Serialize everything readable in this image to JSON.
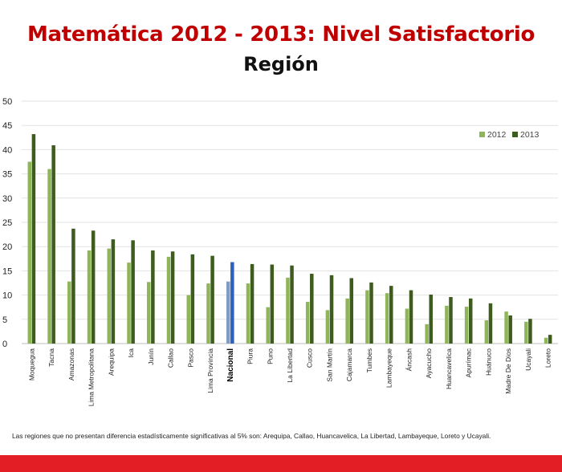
{
  "header": {
    "title": "Matemática 2012 - 2013: Nivel Satisfactorio",
    "subtitle": "Región"
  },
  "footnote": "Las regiones que no presentan diferencia estadísticamente significativas al 5% son: Arequipa, Callao, Huancavelica, La Libertad, Lambayeque, Loreto y Ucayali.",
  "chart_data": {
    "type": "bar",
    "title": "Matemática 2012 - 2013: Nivel Satisfactorio",
    "subtitle": "Región",
    "xlabel": "",
    "ylabel": "",
    "ylim": [
      0,
      50
    ],
    "yticks": [
      0,
      5,
      10,
      15,
      20,
      25,
      30,
      35,
      40,
      45,
      50
    ],
    "grid": true,
    "legend": "top-right",
    "highlight_category": "Nacional",
    "categories": [
      "Moquegua",
      "Tacna",
      "Amazonas",
      "Lima Metropolitana",
      "Arequipa",
      "Ica",
      "Junín",
      "Callao",
      "Pasco",
      "Lima Provincia",
      "Nacional",
      "Piura",
      "Puno",
      "La Libertad",
      "Cusco",
      "San Martín",
      "Cajamarca",
      "Tumbes",
      "Lambayeque",
      "Áncash",
      "Ayacucho",
      "Huancavelica",
      "Apurímac",
      "Huánuco",
      "Madre De Dios",
      "Ucayali",
      "Loreto"
    ],
    "series": [
      {
        "name": "2012",
        "color": "#8fb559",
        "highlight_color": "#7f9cc8",
        "values": [
          37.5,
          36.0,
          12.8,
          19.2,
          19.6,
          16.7,
          12.7,
          17.9,
          10.0,
          12.4,
          12.8,
          12.4,
          7.5,
          13.6,
          8.6,
          6.9,
          9.3,
          11.0,
          10.4,
          7.2,
          4.0,
          7.8,
          7.6,
          4.8,
          6.6,
          4.5,
          1.2
        ]
      },
      {
        "name": "2013",
        "color": "#3d5c1e",
        "highlight_color": "#2d63b8",
        "values": [
          43.2,
          40.9,
          23.7,
          23.3,
          21.5,
          21.3,
          19.2,
          19.0,
          18.4,
          18.1,
          16.8,
          16.4,
          16.3,
          16.1,
          14.4,
          14.1,
          13.5,
          12.6,
          11.9,
          11.0,
          10.1,
          9.6,
          9.3,
          8.3,
          5.8,
          5.1,
          1.8
        ]
      }
    ]
  }
}
